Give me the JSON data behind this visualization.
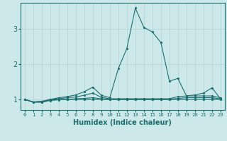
{
  "xlabel": "Humidex (Indice chaleur)",
  "xlim": [
    -0.5,
    23.5
  ],
  "ylim": [
    0.7,
    3.75
  ],
  "xticks": [
    0,
    1,
    2,
    3,
    4,
    5,
    6,
    7,
    8,
    9,
    10,
    11,
    12,
    13,
    14,
    15,
    16,
    17,
    18,
    19,
    20,
    21,
    22,
    23
  ],
  "yticks": [
    1,
    2,
    3
  ],
  "bg_color": "#cce8e8",
  "line_color": "#1a7070",
  "grid_color_major": "#b0d4d4",
  "grid_color_minor": "#c8e0e0",
  "lines": [
    [
      1.0,
      0.93,
      0.93,
      1.0,
      1.05,
      1.08,
      1.13,
      1.22,
      1.35,
      1.12,
      1.05,
      1.88,
      2.45,
      3.6,
      3.05,
      2.92,
      2.62,
      1.52,
      1.6,
      1.1,
      1.13,
      1.18,
      1.33,
      1.02
    ],
    [
      1.0,
      0.93,
      0.95,
      1.0,
      1.02,
      1.05,
      1.07,
      1.12,
      1.18,
      1.06,
      1.02,
      1.02,
      1.02,
      1.02,
      1.02,
      1.02,
      1.02,
      1.02,
      1.08,
      1.1,
      1.1,
      1.1,
      1.1,
      1.05
    ],
    [
      1.0,
      0.93,
      0.93,
      0.98,
      1.0,
      1.0,
      1.02,
      1.03,
      1.05,
      1.02,
      1.0,
      1.0,
      1.0,
      1.0,
      1.0,
      1.0,
      1.0,
      1.0,
      1.03,
      1.05,
      1.05,
      1.05,
      1.05,
      1.02
    ],
    [
      1.0,
      0.92,
      0.92,
      0.97,
      0.99,
      1.0,
      1.0,
      1.0,
      1.0,
      1.0,
      1.0,
      1.0,
      1.0,
      1.0,
      1.0,
      1.0,
      1.0,
      1.0,
      1.0,
      1.0,
      1.0,
      1.0,
      1.0,
      1.0
    ]
  ]
}
